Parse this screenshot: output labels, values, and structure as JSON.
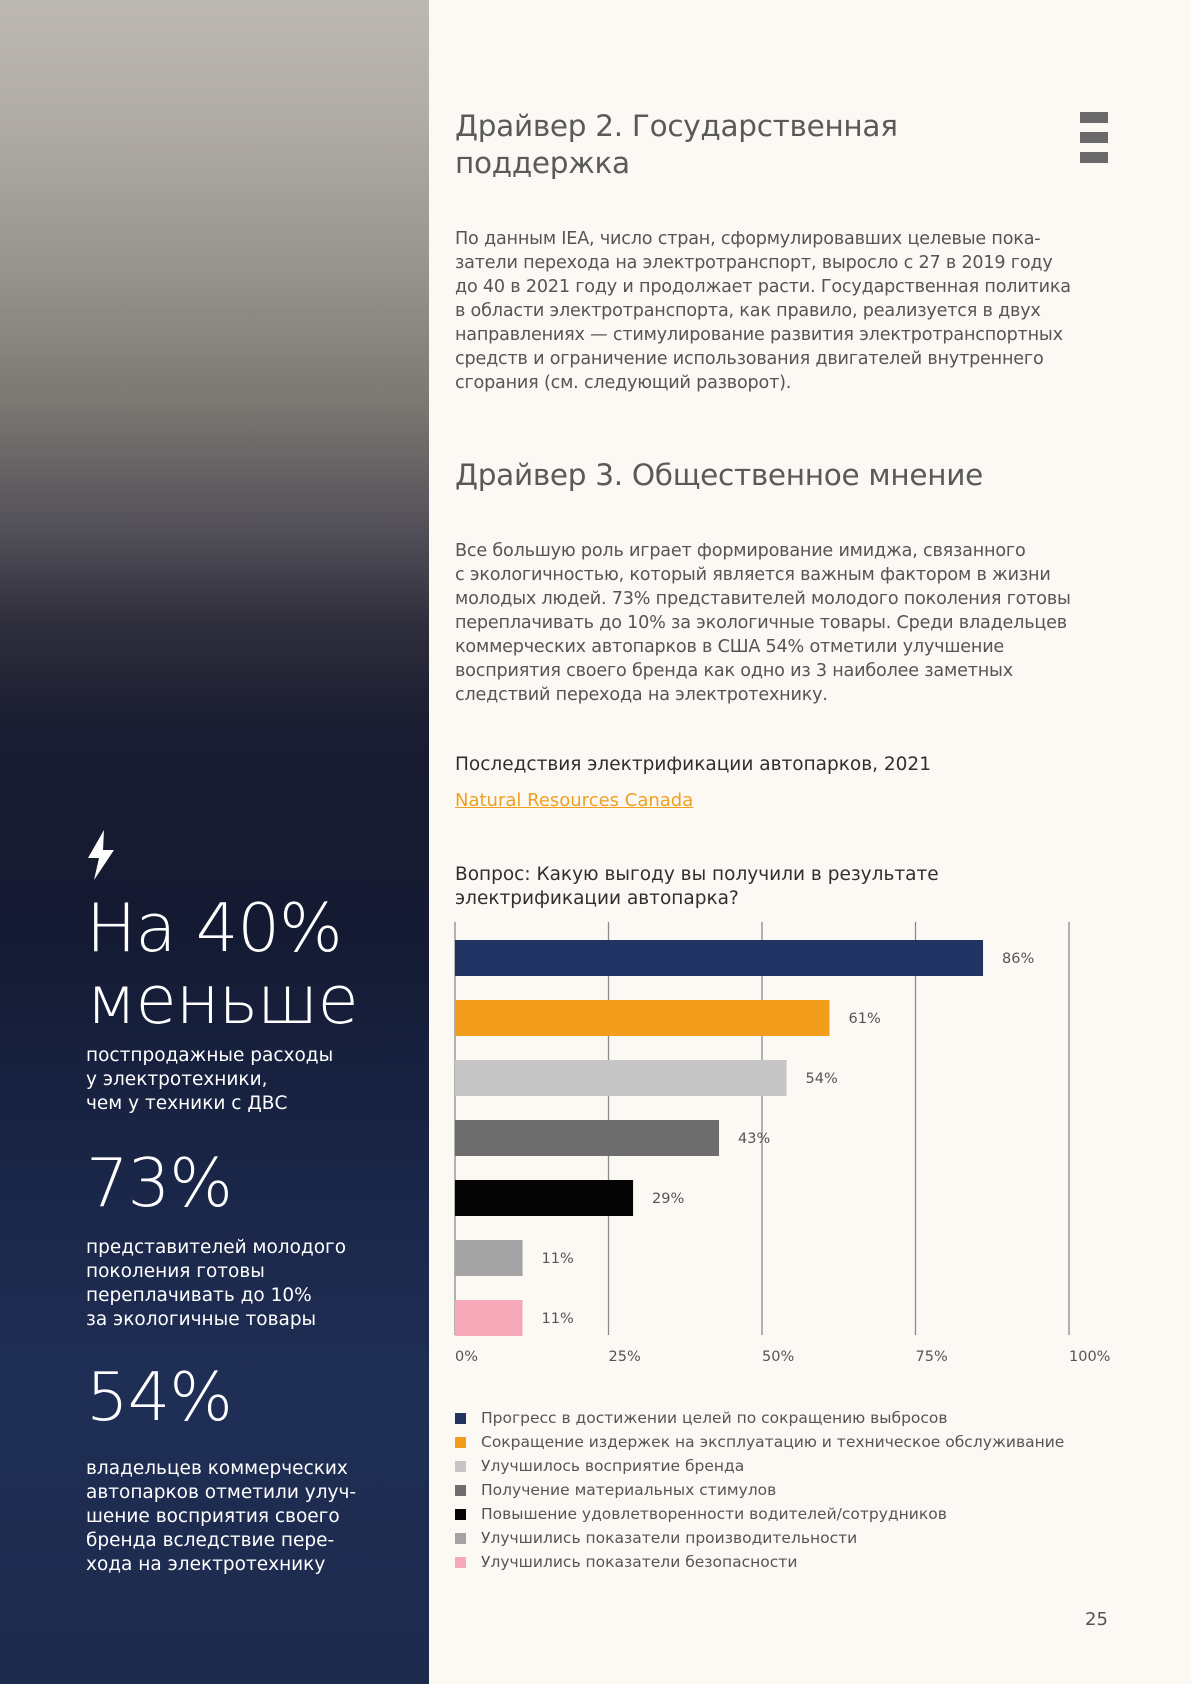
{
  "sidebar": {
    "stat1_value_line1": "На 40%",
    "stat1_value_line2": "меньше",
    "stat1_desc_lines": [
      "постпродажные расходы",
      "у электротехники,",
      "чем у техники с ДВС"
    ],
    "stat2_value": "73%",
    "stat2_desc_lines": [
      "представителей молодого",
      "поколения готовы",
      "переплачивать до 10%",
      "за экологичные товары"
    ],
    "stat3_value": "54%",
    "stat3_desc_lines": [
      "владельцев коммерческих",
      "автопарков отметили улуч-",
      "шение восприятия своего",
      "бренда вследствие пере-",
      "хода на электротехнику"
    ]
  },
  "section1": {
    "title_lines": [
      "Драйвер 2. Государственная",
      "поддержка"
    ],
    "paragraph_lines": [
      "По данным IEA, число стран, сформулировавших целевые пока-",
      "затели перехода на электротранспорт, выросло с 27 в 2019 году",
      "до 40 в 2021 году и продолжает расти. Государственная политика",
      "в области электротранспорта, как правило, реализуется в двух",
      "направлениях — стимулирование развития электротранспортных",
      "средств и ограничение использования двигателей внутреннего",
      "сгорания (см. следующий разворот)."
    ]
  },
  "section2": {
    "title": "Драйвер 3. Общественное мнение",
    "paragraph_lines": [
      "Все большую роль играет формирование имиджа, связанного",
      "с экологичностью, который является важным фактором в жизни",
      "молодых людей. 73% представителей молодого поколения готовы",
      "переплачивать до 10% за экологичные товары. Среди владельцев",
      "коммерческих автопарков в США 54% отметили улучшение",
      "восприятия своего бренда как одно из 3 наиболее заметных",
      "следствий перехода на электротехнику."
    ]
  },
  "chart_meta": {
    "title": "Последствия электрификации автопарков, 2021",
    "source": "Natural Resources Canada",
    "question_lines": [
      "Вопрос: Какую выгоду вы получили в результате",
      "электрификации автопарка?"
    ]
  },
  "chart_data": {
    "type": "bar",
    "orientation": "horizontal",
    "categories": [
      "Прогресс в достижении целей по сокращению выбросов",
      "Сокращение издержек на эксплуатацию и техническое обслуживание",
      "Улучшилось восприятие бренда",
      "Получение материальных стимулов",
      "Повышение удовлетворенности водителей/сотрудников",
      "Улучшились показатели производительности",
      "Улучшились показатели безопасности"
    ],
    "values": [
      86,
      61,
      54,
      43,
      29,
      11,
      11
    ],
    "value_labels": [
      "86%",
      "61%",
      "54%",
      "43%",
      "29%",
      "11%",
      "11%"
    ],
    "colors": [
      "#1f3462",
      "#f29d1c",
      "#c6c6c6",
      "#6e6e6e",
      "#050505",
      "#a3a3a3",
      "#f6a8b8"
    ],
    "xlim": [
      0,
      100
    ],
    "xticks": [
      "0%",
      "25%",
      "50%",
      "75%",
      "100%"
    ],
    "grid": true,
    "legend_position": "bottom"
  },
  "page_number": "25"
}
